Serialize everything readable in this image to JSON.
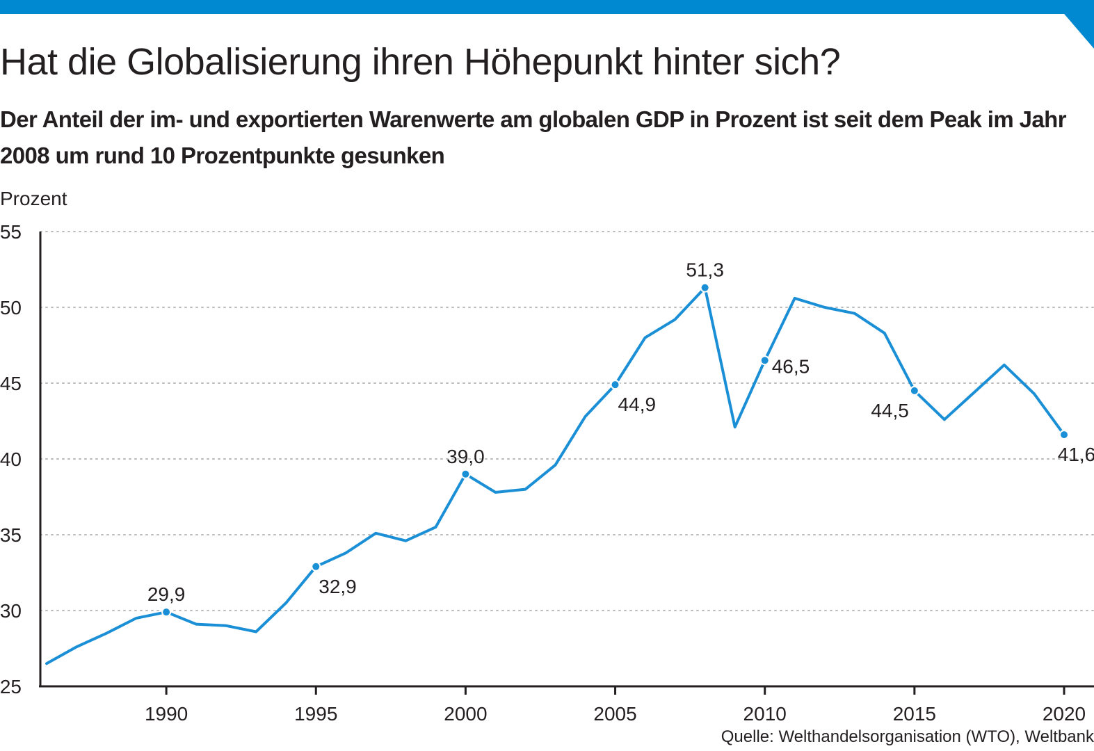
{
  "chart_data": {
    "type": "line",
    "title": "Hat die Globalisierung ihren Höhepunkt hinter sich?",
    "subtitle": "Der Anteil der im- und exportierten Warenwerte am globalen GDP in Prozent ist seit dem Peak im Jahr 2008 um rund 10 Prozentpunkte gesunken",
    "ylabel": "Prozent",
    "xlabel": "",
    "source": "Quelle: Welthandelsorganisation (WTO), Weltbank",
    "ylim": [
      25,
      55
    ],
    "xlim": [
      1986,
      2021
    ],
    "y_ticks": [
      55,
      50,
      45,
      40,
      35,
      30,
      25
    ],
    "y_tick_labels": [
      "55",
      "50",
      "45",
      "40",
      "35",
      "30",
      "25"
    ],
    "x_ticks": [
      1990,
      1995,
      2000,
      2005,
      2010,
      2015,
      2020
    ],
    "x_tick_labels": [
      "1990",
      "1995",
      "2000",
      "2005",
      "2010",
      "2015",
      "2020"
    ],
    "grid": true,
    "series_color": "#1a8fd6",
    "series": [
      {
        "x": [
          1986,
          1987,
          1988,
          1989,
          1990,
          1991,
          1992,
          1993,
          1994,
          1995,
          1996,
          1997,
          1998,
          1999,
          2000,
          2001,
          2002,
          2003,
          2004,
          2005,
          2006,
          2007,
          2008,
          2009,
          2010,
          2011,
          2012,
          2013,
          2014,
          2015,
          2016,
          2017,
          2018,
          2019,
          2020
        ],
        "values": [
          26.5,
          27.6,
          28.5,
          29.5,
          29.9,
          29.1,
          29.0,
          28.6,
          30.5,
          32.9,
          33.8,
          35.1,
          34.6,
          35.5,
          39.0,
          37.8,
          38.0,
          39.6,
          42.8,
          44.9,
          48.0,
          49.2,
          51.3,
          42.1,
          46.5,
          50.6,
          50.0,
          49.6,
          48.3,
          44.5,
          42.6,
          44.4,
          46.2,
          44.3,
          41.6
        ]
      }
    ],
    "annotations": [
      {
        "x": 1990,
        "y": 29.9,
        "label": "29,9",
        "pos": "above"
      },
      {
        "x": 1995,
        "y": 32.9,
        "label": "32,9",
        "pos": "below-right"
      },
      {
        "x": 2000,
        "y": 39.0,
        "label": "39,0",
        "pos": "above"
      },
      {
        "x": 2005,
        "y": 44.9,
        "label": "44,9",
        "pos": "below-right"
      },
      {
        "x": 2008,
        "y": 51.3,
        "label": "51,3",
        "pos": "above"
      },
      {
        "x": 2010,
        "y": 46.5,
        "label": "46,5",
        "pos": "right"
      },
      {
        "x": 2015,
        "y": 44.5,
        "label": "44,5",
        "pos": "below-left"
      },
      {
        "x": 2020,
        "y": 41.6,
        "label": "41,6",
        "pos": "below"
      }
    ]
  }
}
